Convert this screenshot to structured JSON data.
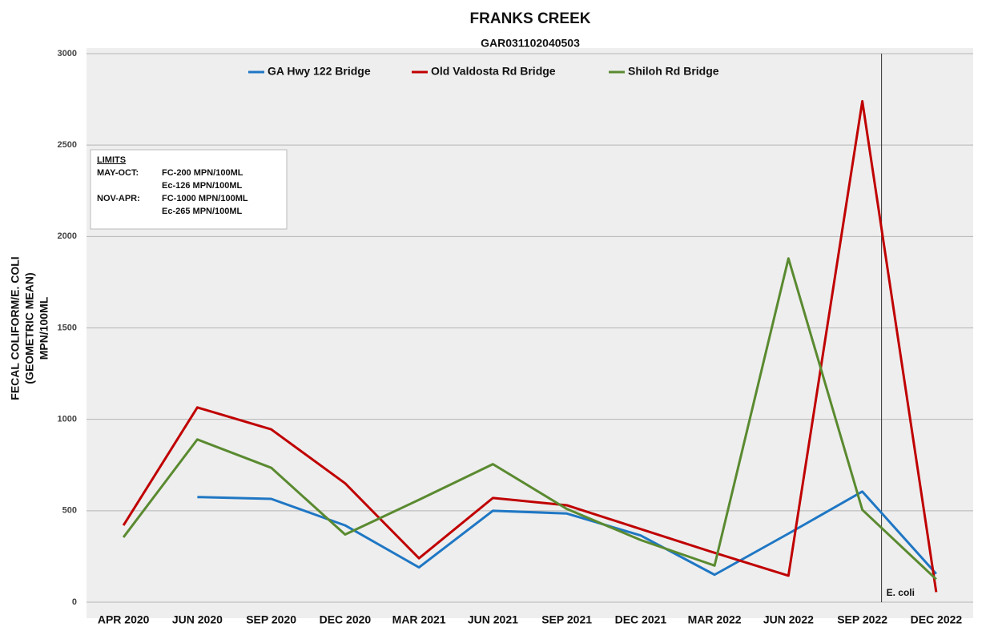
{
  "chart_data": {
    "type": "line",
    "title": "FRANKS CREEK",
    "subtitle": "GAR031102040503",
    "y_label": [
      "FECAL COLIFORM/E. COLI",
      "(GEOMETRIC MEAN)",
      "MPN/100ML"
    ],
    "categories": [
      "APR 2020",
      "JUN 2020",
      "SEP 2020",
      "DEC 2020",
      "MAR 2021",
      "JUN 2021",
      "SEP 2021",
      "DEC 2021",
      "MAR 2022",
      "JUN 2022",
      "SEP 2022",
      "DEC 2022"
    ],
    "series": [
      {
        "name": "GA Hwy 122 Bridge",
        "color": "#1f77c4",
        "values": [
          null,
          575,
          565,
          420,
          190,
          500,
          485,
          365,
          150,
          375,
          605,
          155
        ]
      },
      {
        "name": "Old Valdosta Rd Bridge",
        "color": "#c00000",
        "values": [
          420,
          1065,
          945,
          650,
          240,
          570,
          530,
          400,
          270,
          145,
          2740,
          55
        ]
      },
      {
        "name": "Shiloh Rd Bridge",
        "color": "#5a8a30",
        "values": [
          355,
          890,
          735,
          370,
          560,
          755,
          510,
          340,
          200,
          1880,
          505,
          125
        ]
      }
    ],
    "ylim": [
      0,
      3000
    ],
    "yticks": [
      0,
      500,
      1000,
      1500,
      2000,
      2500,
      3000
    ],
    "grid": true,
    "legend": "top",
    "annotation": "E. coli",
    "limits": {
      "title": "LIMITS",
      "rows": [
        {
          "period": "MAY-OCT:",
          "items": [
            "FC-200 MPN/100ML",
            "Ec-126 MPN/100ML"
          ]
        },
        {
          "period": "NOV-APR:",
          "items": [
            "FC-1000 MPN/100ML",
            "Ec-265 MPN/100ML"
          ]
        }
      ]
    }
  }
}
